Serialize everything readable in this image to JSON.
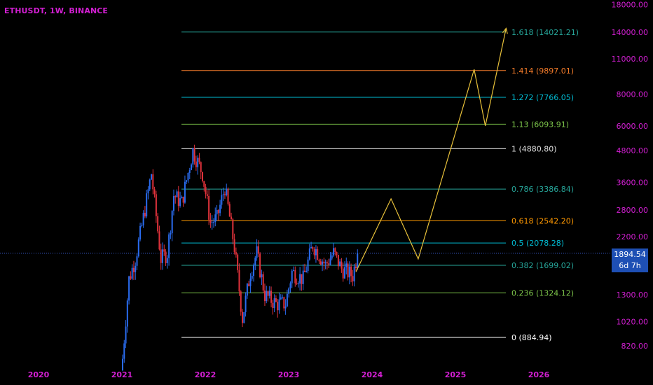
{
  "header": {
    "title": "ETHUSDT, 1W, BINANCE"
  },
  "price_label": {
    "price": "1894.54",
    "countdown": "6d 7h"
  },
  "colors": {
    "background": "#000000",
    "axis_text": "#d21fd2",
    "up": "#2a6cf0",
    "down": "#e0323b",
    "path": "#e8c13a",
    "price_line": "#3a5fd8"
  },
  "chart_data": {
    "type": "candlestick",
    "title": "ETHUSDT, 1W, BINANCE",
    "y_scale": "log",
    "y_ticks": [
      "18000.00",
      "14000.00",
      "11000.00",
      "8000.00",
      "6000.00",
      "4800.00",
      "3600.00",
      "2800.00",
      "2200.00",
      "1300.00",
      "1020.00",
      "820.00"
    ],
    "y_tick_values": [
      18000,
      14000,
      11000,
      8000,
      6000,
      4800,
      3600,
      2800,
      2200,
      1300,
      1020,
      820
    ],
    "x_ticks": [
      "2020",
      "2021",
      "2022",
      "2023",
      "2024",
      "2025",
      "2026"
    ],
    "fib_levels": [
      {
        "label": "1.618 (14021.21)",
        "value": 14021.21,
        "color": "#26a69a"
      },
      {
        "label": "1.414 (9897.01)",
        "value": 9897.01,
        "color": "#f57c2a"
      },
      {
        "label": "1.272 (7766.05)",
        "value": 7766.05,
        "color": "#00bcd4"
      },
      {
        "label": "1.13 (6093.91)",
        "value": 6093.91,
        "color": "#7cc44a"
      },
      {
        "label": "1 (4880.80)",
        "value": 4880.8,
        "color": "#e0e0e0"
      },
      {
        "label": "0.786 (3386.84)",
        "value": 3386.84,
        "color": "#26a69a"
      },
      {
        "label": "0.618 (2542.20)",
        "value": 2542.2,
        "color": "#ff9800"
      },
      {
        "label": "0.5 (2078.28)",
        "value": 2078.28,
        "color": "#00bcd4"
      },
      {
        "label": "0.382 (1699.02)",
        "value": 1699.02,
        "color": "#26a69a"
      },
      {
        "label": "0.236 (1324.12)",
        "value": 1324.12,
        "color": "#7cc44a"
      },
      {
        "label": "0 (884.94)",
        "value": 884.94,
        "color": "#ffffff"
      }
    ],
    "price_path": [
      {
        "date": "2021-01-04",
        "close": 730
      },
      {
        "date": "2021-02-01",
        "close": 1500
      },
      {
        "date": "2021-03-01",
        "close": 1800
      },
      {
        "date": "2021-04-01",
        "close": 2500
      },
      {
        "date": "2021-05-10",
        "close": 3900
      },
      {
        "date": "2021-06-21",
        "close": 1800
      },
      {
        "date": "2021-07-19",
        "close": 1900
      },
      {
        "date": "2021-08-16",
        "close": 3200
      },
      {
        "date": "2021-09-20",
        "close": 3000
      },
      {
        "date": "2021-10-25",
        "close": 4200
      },
      {
        "date": "2021-11-08",
        "close": 4800
      },
      {
        "date": "2021-12-20",
        "close": 3900
      },
      {
        "date": "2022-01-24",
        "close": 2500
      },
      {
        "date": "2022-02-21",
        "close": 2600
      },
      {
        "date": "2022-03-28",
        "close": 3450
      },
      {
        "date": "2022-05-09",
        "close": 2000
      },
      {
        "date": "2022-06-13",
        "close": 1050
      },
      {
        "date": "2022-07-18",
        "close": 1600
      },
      {
        "date": "2022-08-15",
        "close": 1900
      },
      {
        "date": "2022-09-19",
        "close": 1300
      },
      {
        "date": "2022-11-07",
        "close": 1200
      },
      {
        "date": "2022-12-19",
        "close": 1200
      },
      {
        "date": "2023-01-16",
        "close": 1600
      },
      {
        "date": "2023-03-06",
        "close": 1500
      },
      {
        "date": "2023-04-17",
        "close": 2050
      },
      {
        "date": "2023-06-12",
        "close": 1700
      },
      {
        "date": "2023-07-17",
        "close": 1900
      },
      {
        "date": "2023-08-21",
        "close": 1650
      },
      {
        "date": "2023-10-09",
        "close": 1550
      },
      {
        "date": "2023-10-30",
        "close": 1894.54
      }
    ],
    "projection": [
      {
        "date": "2023-10-23",
        "price": 1600
      },
      {
        "date": "2024-03-25",
        "price": 3100
      },
      {
        "date": "2024-07-22",
        "price": 1800
      },
      {
        "date": "2025-03-24",
        "price": 10000
      },
      {
        "date": "2025-05-12",
        "price": 6000
      },
      {
        "date": "2025-08-11",
        "price": 14500
      }
    ],
    "current_price": 1894.54
  }
}
